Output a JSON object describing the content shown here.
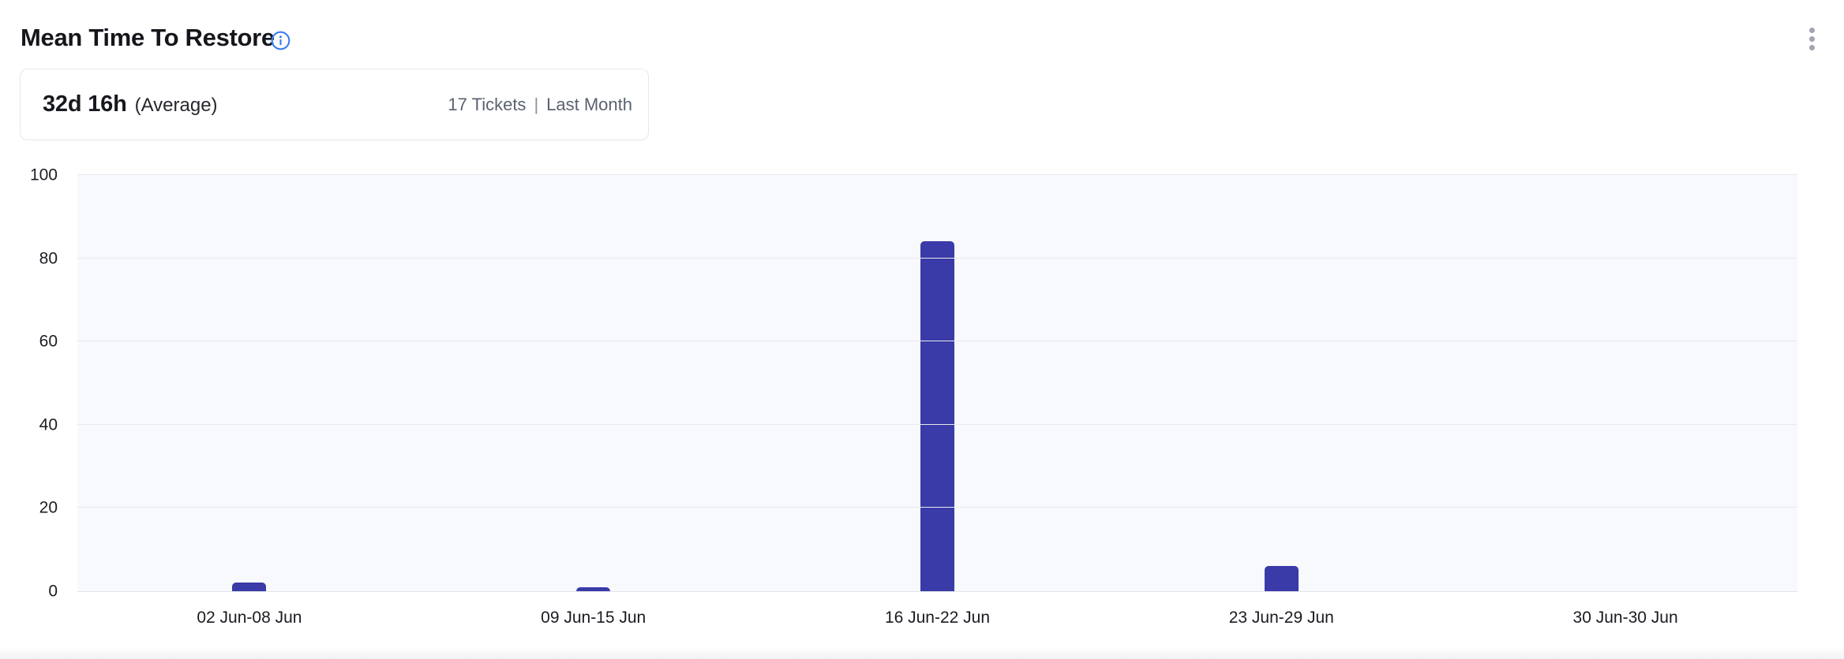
{
  "header": {
    "title": "Mean Time To Restore"
  },
  "summary": {
    "value": "32d 16h",
    "label": "(Average)",
    "tickets": "17 Tickets",
    "separator": "|",
    "period": "Last Month"
  },
  "chart_data": {
    "type": "bar",
    "title": "Mean Time To Restore",
    "categories": [
      "02 Jun-08 Jun",
      "09 Jun-15 Jun",
      "16 Jun-22 Jun",
      "23 Jun-29 Jun",
      "30 Jun-30 Jun"
    ],
    "values": [
      2,
      1,
      84,
      6,
      0
    ],
    "xlabel": "",
    "ylabel": "",
    "ylim": [
      0,
      100
    ],
    "yticks": [
      0,
      20,
      40,
      60,
      80,
      100
    ],
    "grid": true,
    "legend_position": "none",
    "bar_color": "#3a3aa8",
    "plot_bg": "#f8f9fc"
  },
  "colors": {
    "accent_bar": "#3a3aa8",
    "info_icon_blue": "#3b7ef2",
    "kebab_gray": "#a2a4b1",
    "card_border": "#e4e7ec",
    "gridline": "#e8eaee"
  }
}
